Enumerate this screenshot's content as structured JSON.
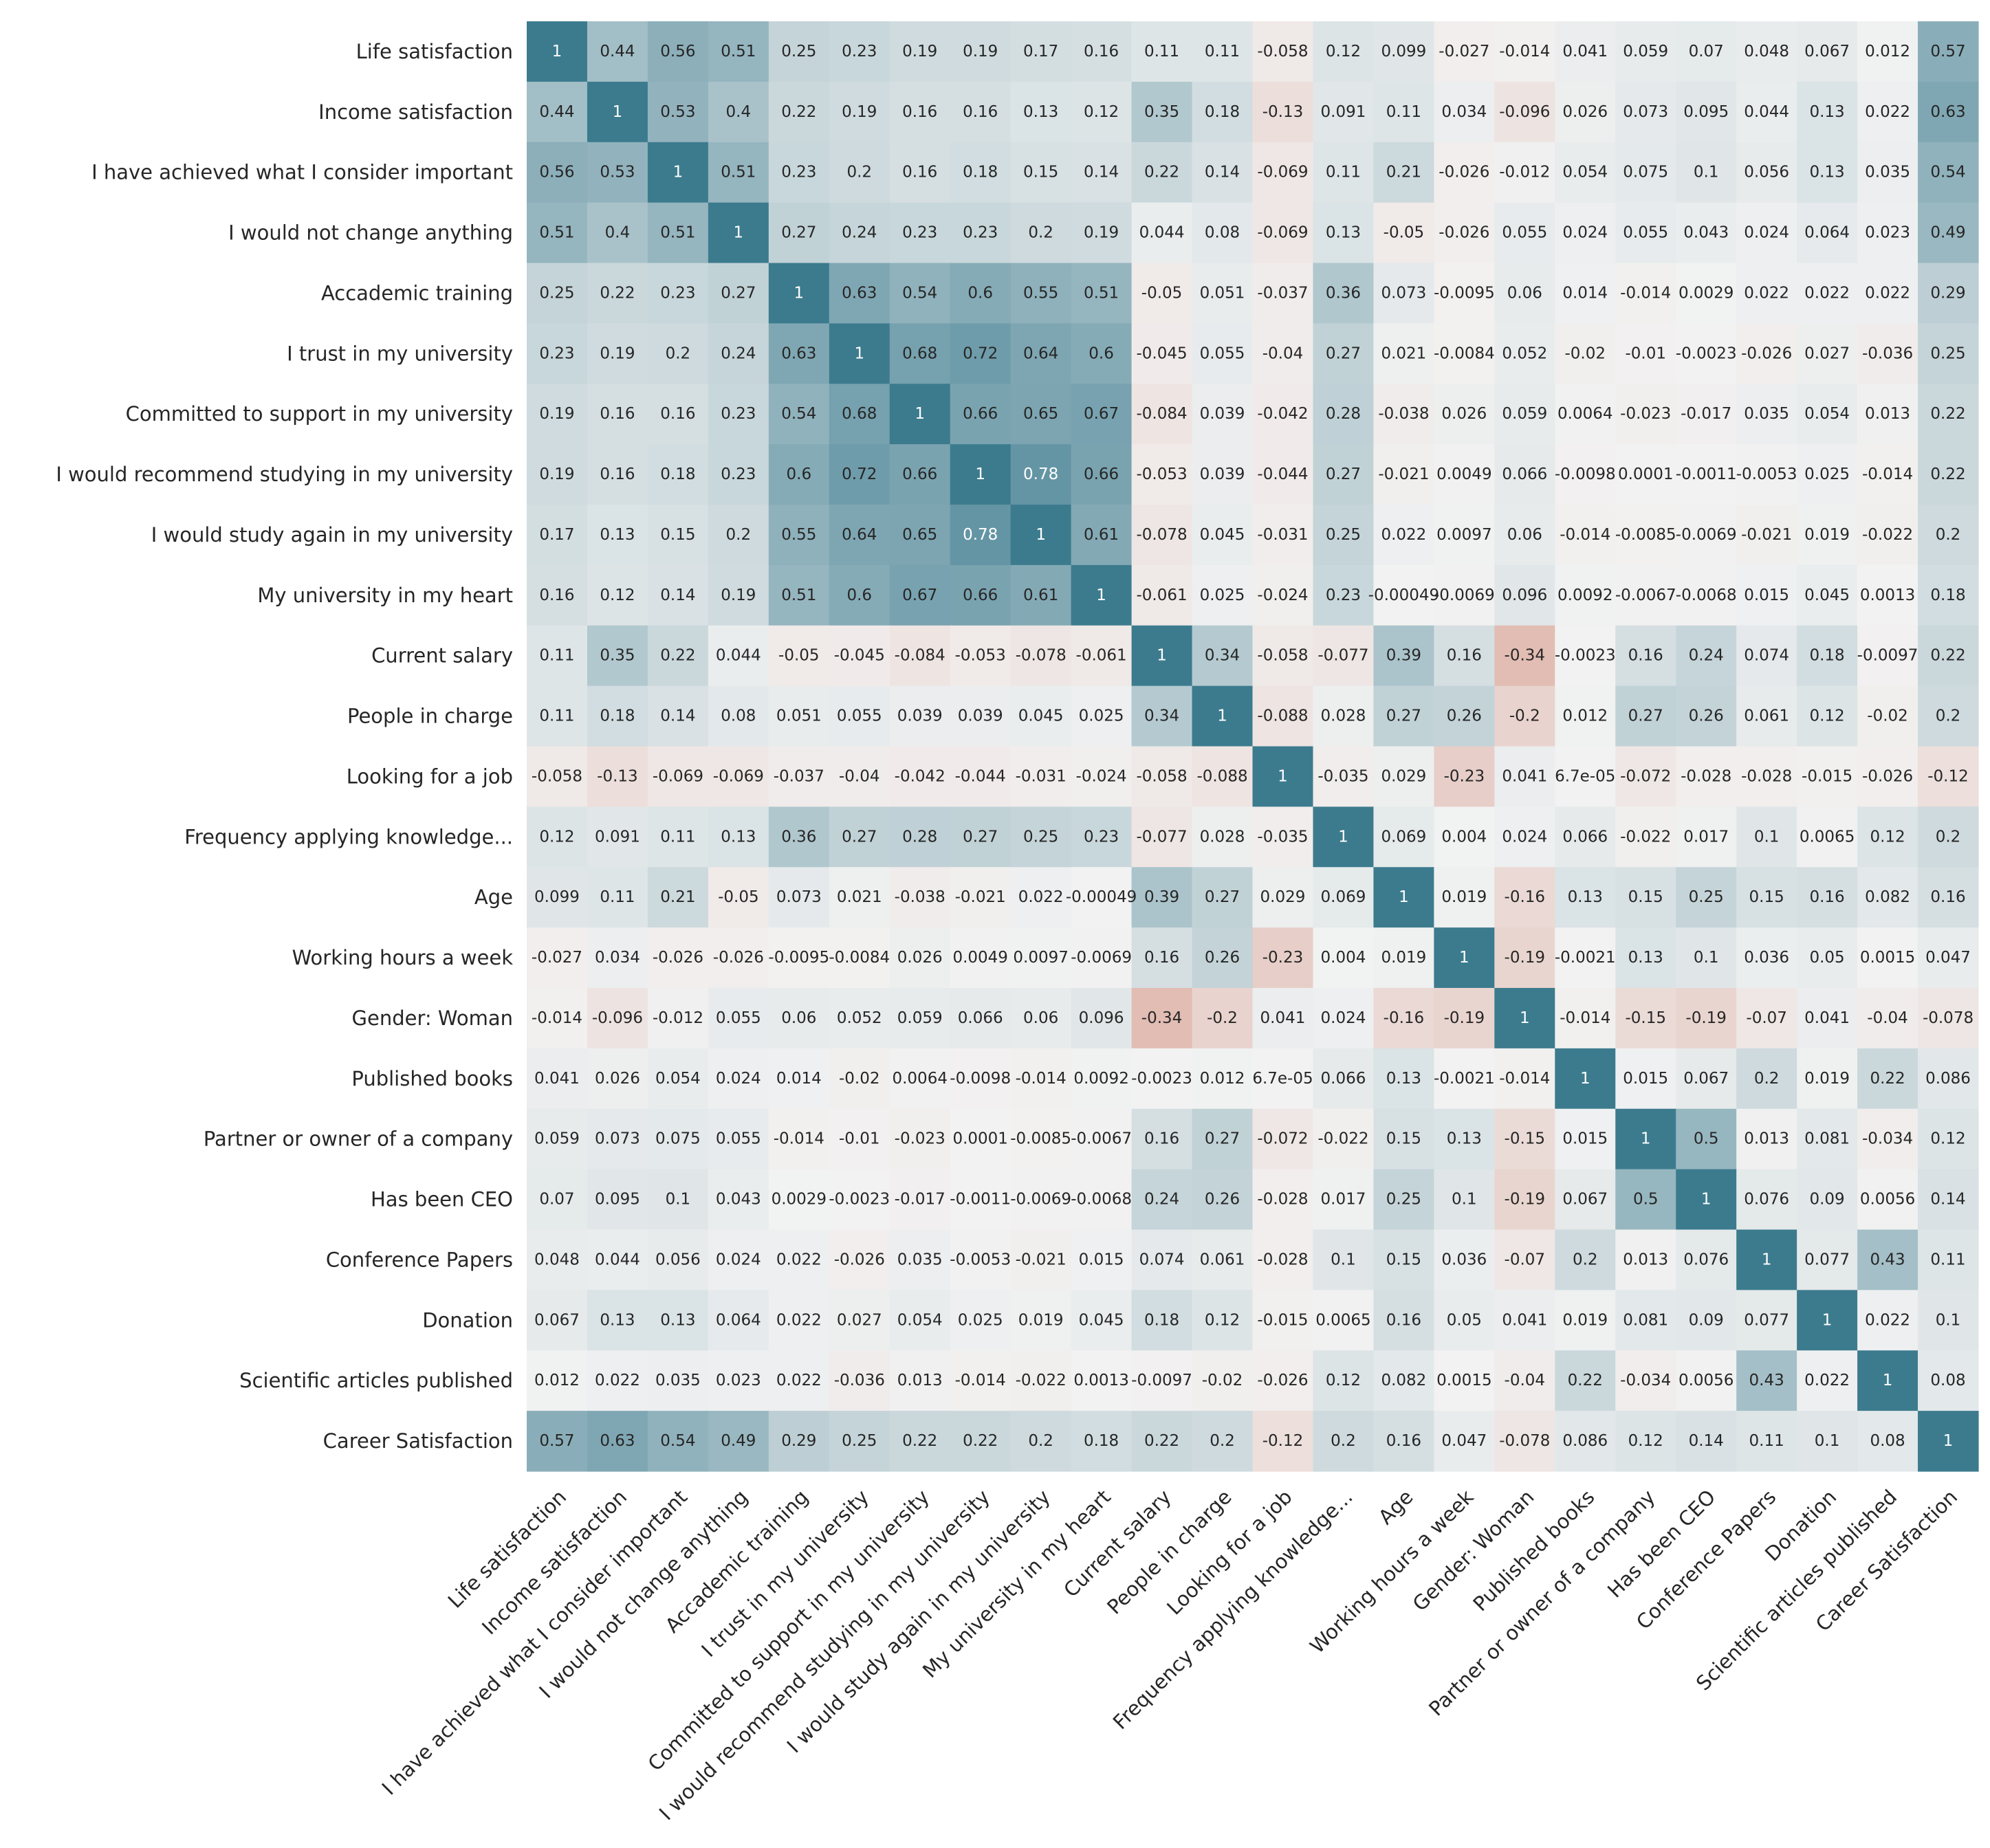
{
  "chart_data": {
    "type": "heatmap",
    "title": "",
    "xlabel": "",
    "ylabel": "",
    "colorscale": {
      "min": -1,
      "max": 1,
      "negative_color": "#c3573c",
      "center_color": "#f2f2f2",
      "positive_color": "#3c7b8e"
    },
    "text_colors": {
      "dark": "#262626",
      "light": "#ffffff"
    },
    "labels": [
      "Life satisfaction",
      "Income satisfaction",
      "I have achieved what I consider important",
      "I would not change anything",
      "Accademic training",
      "I trust in my university",
      "Committed to support in my university",
      "I would recommend studying in my university",
      "I would study again in my university",
      "My university in my heart",
      "Current salary",
      "People in charge",
      "Looking for a job",
      "Frequency applying knowledge...",
      "Age",
      "Working hours a week",
      "Gender: Woman",
      "Published books",
      "Partner or owner of a company",
      "Has been CEO",
      "Conference Papers",
      "Donation",
      "Scientific articles published",
      "Career Satisfaction"
    ],
    "values": [
      [
        "1",
        "0.44",
        "0.56",
        "0.51",
        "0.25",
        "0.23",
        "0.19",
        "0.19",
        "0.17",
        "0.16",
        "0.11",
        "0.11",
        "-0.058",
        "0.12",
        "0.099",
        "-0.027",
        "-0.014",
        "0.041",
        "0.059",
        "0.07",
        "0.048",
        "0.067",
        "0.012",
        "0.57"
      ],
      [
        "0.44",
        "1",
        "0.53",
        "0.4",
        "0.22",
        "0.19",
        "0.16",
        "0.16",
        "0.13",
        "0.12",
        "0.35",
        "0.18",
        "-0.13",
        "0.091",
        "0.11",
        "0.034",
        "-0.096",
        "0.026",
        "0.073",
        "0.095",
        "0.044",
        "0.13",
        "0.022",
        "0.63"
      ],
      [
        "0.56",
        "0.53",
        "1",
        "0.51",
        "0.23",
        "0.2",
        "0.16",
        "0.18",
        "0.15",
        "0.14",
        "0.22",
        "0.14",
        "-0.069",
        "0.11",
        "0.21",
        "-0.026",
        "-0.012",
        "0.054",
        "0.075",
        "0.1",
        "0.056",
        "0.13",
        "0.035",
        "0.54"
      ],
      [
        "0.51",
        "0.4",
        "0.51",
        "1",
        "0.27",
        "0.24",
        "0.23",
        "0.23",
        "0.2",
        "0.19",
        "0.044",
        "0.08",
        "-0.069",
        "0.13",
        "-0.05",
        "-0.026",
        "0.055",
        "0.024",
        "0.055",
        "0.043",
        "0.024",
        "0.064",
        "0.023",
        "0.49"
      ],
      [
        "0.25",
        "0.22",
        "0.23",
        "0.27",
        "1",
        "0.63",
        "0.54",
        "0.6",
        "0.55",
        "0.51",
        "-0.05",
        "0.051",
        "-0.037",
        "0.36",
        "0.073",
        "-0.0095",
        "0.06",
        "0.014",
        "-0.014",
        "0.0029",
        "0.022",
        "0.022",
        "0.022",
        "0.29"
      ],
      [
        "0.23",
        "0.19",
        "0.2",
        "0.24",
        "0.63",
        "1",
        "0.68",
        "0.72",
        "0.64",
        "0.6",
        "-0.045",
        "0.055",
        "-0.04",
        "0.27",
        "0.021",
        "-0.0084",
        "0.052",
        "-0.02",
        "-0.01",
        "-0.0023",
        "-0.026",
        "0.027",
        "-0.036",
        "0.25"
      ],
      [
        "0.19",
        "0.16",
        "0.16",
        "0.23",
        "0.54",
        "0.68",
        "1",
        "0.66",
        "0.65",
        "0.67",
        "-0.084",
        "0.039",
        "-0.042",
        "0.28",
        "-0.038",
        "0.026",
        "0.059",
        "0.0064",
        "-0.023",
        "-0.017",
        "0.035",
        "0.054",
        "0.013",
        "0.22"
      ],
      [
        "0.19",
        "0.16",
        "0.18",
        "0.23",
        "0.6",
        "0.72",
        "0.66",
        "1",
        "0.78",
        "0.66",
        "-0.053",
        "0.039",
        "-0.044",
        "0.27",
        "-0.021",
        "0.0049",
        "0.066",
        "-0.0098",
        "0.0001",
        "-0.0011",
        "-0.0053",
        "0.025",
        "-0.014",
        "0.22"
      ],
      [
        "0.17",
        "0.13",
        "0.15",
        "0.2",
        "0.55",
        "0.64",
        "0.65",
        "0.78",
        "1",
        "0.61",
        "-0.078",
        "0.045",
        "-0.031",
        "0.25",
        "0.022",
        "0.0097",
        "0.06",
        "-0.014",
        "-0.0085",
        "-0.0069",
        "-0.021",
        "0.019",
        "-0.022",
        "0.2"
      ],
      [
        "0.16",
        "0.12",
        "0.14",
        "0.19",
        "0.51",
        "0.6",
        "0.67",
        "0.66",
        "0.61",
        "1",
        "-0.061",
        "0.025",
        "-0.024",
        "0.23",
        "-0.00049",
        "-0.0069",
        "0.096",
        "0.0092",
        "-0.0067",
        "-0.0068",
        "0.015",
        "0.045",
        "0.0013",
        "0.18"
      ],
      [
        "0.11",
        "0.35",
        "0.22",
        "0.044",
        "-0.05",
        "-0.045",
        "-0.084",
        "-0.053",
        "-0.078",
        "-0.061",
        "1",
        "0.34",
        "-0.058",
        "-0.077",
        "0.39",
        "0.16",
        "-0.34",
        "-0.0023",
        "0.16",
        "0.24",
        "0.074",
        "0.18",
        "-0.0097",
        "0.22"
      ],
      [
        "0.11",
        "0.18",
        "0.14",
        "0.08",
        "0.051",
        "0.055",
        "0.039",
        "0.039",
        "0.045",
        "0.025",
        "0.34",
        "1",
        "-0.088",
        "0.028",
        "0.27",
        "0.26",
        "-0.2",
        "0.012",
        "0.27",
        "0.26",
        "0.061",
        "0.12",
        "-0.02",
        "0.2"
      ],
      [
        "-0.058",
        "-0.13",
        "-0.069",
        "-0.069",
        "-0.037",
        "-0.04",
        "-0.042",
        "-0.044",
        "-0.031",
        "-0.024",
        "-0.058",
        "-0.088",
        "1",
        "-0.035",
        "0.029",
        "-0.23",
        "0.041",
        "6.7e-05",
        "-0.072",
        "-0.028",
        "-0.028",
        "-0.015",
        "-0.026",
        "-0.12"
      ],
      [
        "0.12",
        "0.091",
        "0.11",
        "0.13",
        "0.36",
        "0.27",
        "0.28",
        "0.27",
        "0.25",
        "0.23",
        "-0.077",
        "0.028",
        "-0.035",
        "1",
        "0.069",
        "0.004",
        "0.024",
        "0.066",
        "-0.022",
        "0.017",
        "0.1",
        "0.0065",
        "0.12",
        "0.2"
      ],
      [
        "0.099",
        "0.11",
        "0.21",
        "-0.05",
        "0.073",
        "0.021",
        "-0.038",
        "-0.021",
        "0.022",
        "-0.00049",
        "0.39",
        "0.27",
        "0.029",
        "0.069",
        "1",
        "0.019",
        "-0.16",
        "0.13",
        "0.15",
        "0.25",
        "0.15",
        "0.16",
        "0.082",
        "0.16"
      ],
      [
        "-0.027",
        "0.034",
        "-0.026",
        "-0.026",
        "-0.0095",
        "-0.0084",
        "0.026",
        "0.0049",
        "0.0097",
        "-0.0069",
        "0.16",
        "0.26",
        "-0.23",
        "0.004",
        "0.019",
        "1",
        "-0.19",
        "-0.0021",
        "0.13",
        "0.1",
        "0.036",
        "0.05",
        "0.0015",
        "0.047"
      ],
      [
        "-0.014",
        "-0.096",
        "-0.012",
        "0.055",
        "0.06",
        "0.052",
        "0.059",
        "0.066",
        "0.06",
        "0.096",
        "-0.34",
        "-0.2",
        "0.041",
        "0.024",
        "-0.16",
        "-0.19",
        "1",
        "-0.014",
        "-0.15",
        "-0.19",
        "-0.07",
        "0.041",
        "-0.04",
        "-0.078"
      ],
      [
        "0.041",
        "0.026",
        "0.054",
        "0.024",
        "0.014",
        "-0.02",
        "0.0064",
        "-0.0098",
        "-0.014",
        "0.0092",
        "-0.0023",
        "0.012",
        "6.7e-05",
        "0.066",
        "0.13",
        "-0.0021",
        "-0.014",
        "1",
        "0.015",
        "0.067",
        "0.2",
        "0.019",
        "0.22",
        "0.086"
      ],
      [
        "0.059",
        "0.073",
        "0.075",
        "0.055",
        "-0.014",
        "-0.01",
        "-0.023",
        "0.0001",
        "-0.0085",
        "-0.0067",
        "0.16",
        "0.27",
        "-0.072",
        "-0.022",
        "0.15",
        "0.13",
        "-0.15",
        "0.015",
        "1",
        "0.5",
        "0.013",
        "0.081",
        "-0.034",
        "0.12"
      ],
      [
        "0.07",
        "0.095",
        "0.1",
        "0.043",
        "0.0029",
        "-0.0023",
        "-0.017",
        "-0.0011",
        "-0.0069",
        "-0.0068",
        "0.24",
        "0.26",
        "-0.028",
        "0.017",
        "0.25",
        "0.1",
        "-0.19",
        "0.067",
        "0.5",
        "1",
        "0.076",
        "0.09",
        "0.0056",
        "0.14"
      ],
      [
        "0.048",
        "0.044",
        "0.056",
        "0.024",
        "0.022",
        "-0.026",
        "0.035",
        "-0.0053",
        "-0.021",
        "0.015",
        "0.074",
        "0.061",
        "-0.028",
        "0.1",
        "0.15",
        "0.036",
        "-0.07",
        "0.2",
        "0.013",
        "0.076",
        "1",
        "0.077",
        "0.43",
        "0.11"
      ],
      [
        "0.067",
        "0.13",
        "0.13",
        "0.064",
        "0.022",
        "0.027",
        "0.054",
        "0.025",
        "0.019",
        "0.045",
        "0.18",
        "0.12",
        "-0.015",
        "0.0065",
        "0.16",
        "0.05",
        "0.041",
        "0.019",
        "0.081",
        "0.09",
        "0.077",
        "1",
        "0.022",
        "0.1"
      ],
      [
        "0.012",
        "0.022",
        "0.035",
        "0.023",
        "0.022",
        "-0.036",
        "0.013",
        "-0.014",
        "-0.022",
        "0.0013",
        "-0.0097",
        "-0.02",
        "-0.026",
        "0.12",
        "0.082",
        "0.0015",
        "-0.04",
        "0.22",
        "-0.034",
        "0.0056",
        "0.43",
        "0.022",
        "1",
        "0.08"
      ],
      [
        "0.57",
        "0.63",
        "0.54",
        "0.49",
        "0.29",
        "0.25",
        "0.22",
        "0.22",
        "0.2",
        "0.18",
        "0.22",
        "0.2",
        "-0.12",
        "0.2",
        "0.16",
        "0.047",
        "-0.078",
        "0.086",
        "0.12",
        "0.14",
        "0.11",
        "0.1",
        "0.08",
        "1"
      ]
    ]
  }
}
